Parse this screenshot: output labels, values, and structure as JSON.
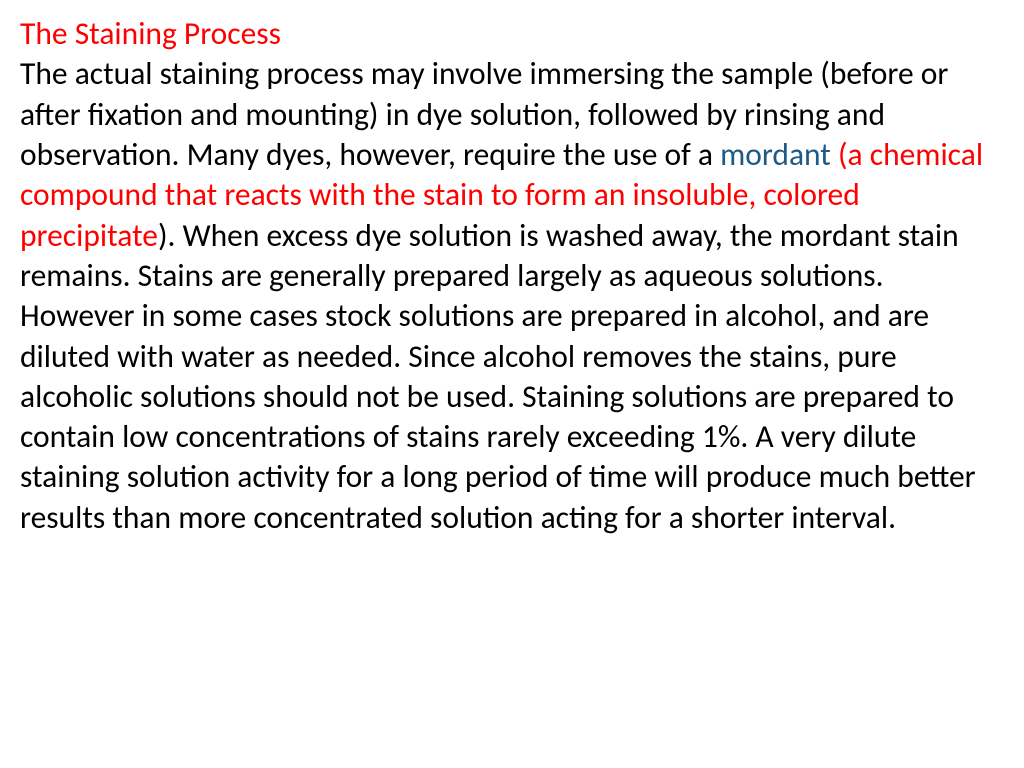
{
  "document": {
    "heading": {
      "text": "The Staining Process",
      "color": "#ff0000",
      "fontsize": 31.5,
      "font_weight": "normal"
    },
    "body_part1": {
      "text": "The actual staining process may involve immersing the sample (before or after fixation and mounting) in dye solution, followed by rinsing and observation. Many dyes, however, require the use of a ",
      "color": "#000000"
    },
    "mordant_word": {
      "text": "mordant ",
      "color": "#1f5985"
    },
    "mordant_definition": {
      "text": "(a chemical compound that reacts with the stain to form an insoluble, colored precipitate",
      "color": "#ff0000"
    },
    "body_part2": {
      "text": "). When excess dye solution is washed away, the mordant stain remains. Stains are generally prepared largely as aqueous solutions. However in some cases stock solutions are prepared in alcohol, and are diluted with water as needed. Since alcohol removes the stains, pure alcoholic solutions should not be used. Staining solutions are prepared to contain low concentrations of stains rarely exceeding 1%. A very dilute staining solution activity for a long period of time will produce much better results than more concentrated solution acting for a shorter interval.",
      "color": "#000000"
    },
    "background_color": "#ffffff",
    "body_fontsize": 31.5,
    "line_height": 1.28
  }
}
